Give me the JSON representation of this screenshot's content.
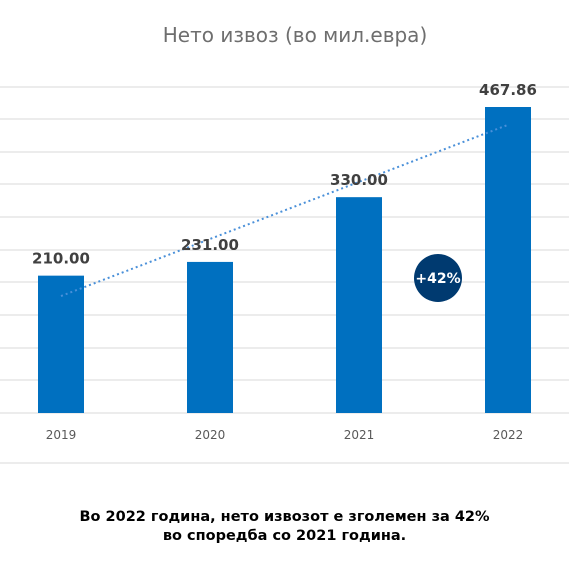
{
  "chart_data": {
    "type": "bar",
    "title": "Нето извоз (во мил.евра)",
    "categories": [
      "2019",
      "2020",
      "2021",
      "2022"
    ],
    "values": [
      210.0,
      231.0,
      330.0,
      467.86
    ],
    "value_labels": [
      "210.00",
      "231.00",
      "330.00",
      "467.86"
    ],
    "ylim": [
      0,
      467.86
    ],
    "grid": true,
    "trendline": "linear-dotted",
    "bar_color": "#0070c0",
    "trend_color": "#4a90d9",
    "badge": {
      "text": "+42%",
      "color": "#003a70"
    }
  },
  "caption": {
    "line1": "Во 2022 година, нето извозот е зголемен за 42%",
    "line2": "во споредба со 2021 година."
  }
}
